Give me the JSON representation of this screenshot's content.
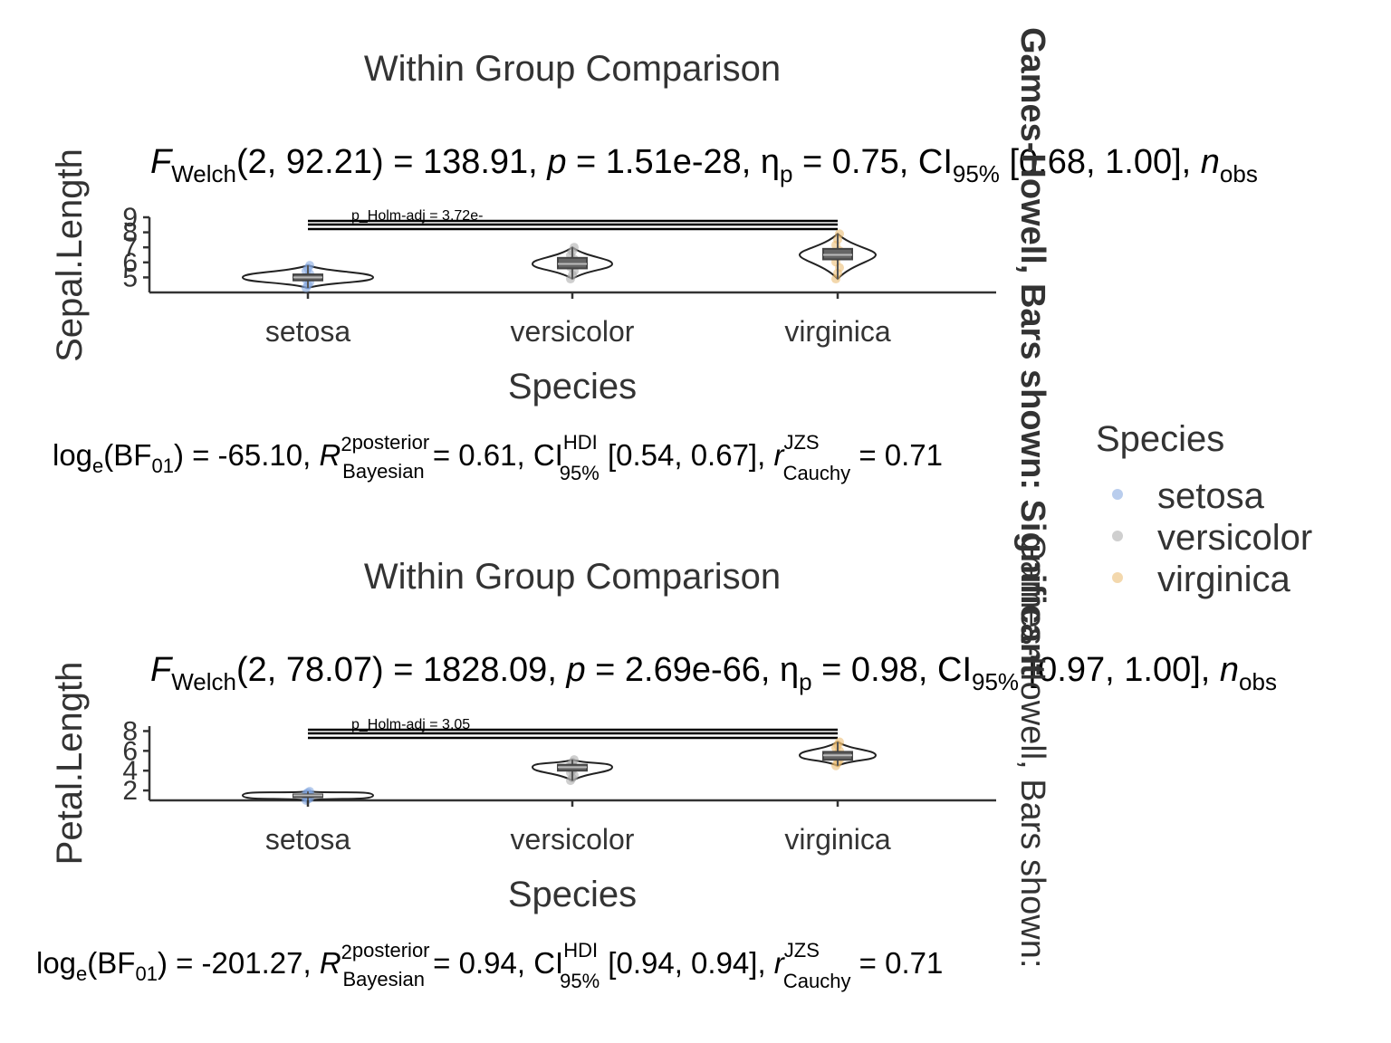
{
  "colors": {
    "setosa": "#7FA4DE",
    "versicolor": "#A8A8A8",
    "virginica": "#E9B86A",
    "axis": "#333333",
    "box": "#555555"
  },
  "side_caption": {
    "upper": "Games-Howell, Bars shown: Significant",
    "lower": "Games-Howell, Bars shown: "
  },
  "legend": {
    "title": "Species",
    "items": [
      "setosa",
      "versicolor",
      "virginica"
    ]
  },
  "chart_data": [
    {
      "type": "violin",
      "title": "Within Group Comparison",
      "stat_label": "F_Welch(2, 92.21) = 138.91, p = 1.51e-28, η²p = 0.75, CI95% [0.68, 1.00], n_obs",
      "stat_parts": {
        "f": "(2, 92.21) = 138.91, ",
        "p": " = 1.51e-28, ",
        "eta": " = 0.75, CI",
        "ci": " [0.68, 1.00], "
      },
      "ylabel": "Sepal.Length",
      "xlabel": "Species",
      "categories": [
        "setosa",
        "versicolor",
        "virginica"
      ],
      "yticks": [
        5,
        6,
        7,
        8,
        9
      ],
      "ylim": [
        4,
        9
      ],
      "groups": [
        {
          "name": "setosa",
          "min": 4.3,
          "q1": 4.8,
          "median": 5.0,
          "q3": 5.2,
          "max": 5.8
        },
        {
          "name": "versicolor",
          "min": 4.9,
          "q1": 5.6,
          "median": 5.9,
          "q3": 6.3,
          "max": 7.0
        },
        {
          "name": "virginica",
          "min": 4.9,
          "q1": 6.2,
          "median": 6.5,
          "q3": 6.9,
          "max": 7.9
        }
      ],
      "pairwise_label": "p_Holm-adj = 3.72e-",
      "bayes_label": "log_e(BF01) = -65.10, R²posterior Bayesian = 0.61, CI HDI 95% [0.54, 0.67], r JZS Cauchy = 0.71",
      "bayes_parts": {
        "bf": ") = -65.10, ",
        "r2": " = 0.61, CI",
        "ci": " [0.54, 0.67], ",
        "r": " = 0.71"
      }
    },
    {
      "type": "violin",
      "title": "Within Group Comparison",
      "stat_label": "F_Welch(2, 78.07) = 1828.09, p = 2.69e-66, η²p = 0.98, CI95% [0.97, 1.00], n_obs",
      "stat_parts": {
        "f": "(2, 78.07) = 1828.09, ",
        "p": " = 2.69e-66, ",
        "eta": " = 0.98, CI",
        "ci": " [0.97, 1.00], "
      },
      "ylabel": "Petal.Length",
      "xlabel": "Species",
      "categories": [
        "setosa",
        "versicolor",
        "virginica"
      ],
      "yticks": [
        2,
        4,
        6,
        8
      ],
      "ylim": [
        1,
        8.5
      ],
      "groups": [
        {
          "name": "setosa",
          "min": 1.0,
          "q1": 1.4,
          "median": 1.5,
          "q3": 1.6,
          "max": 1.9
        },
        {
          "name": "versicolor",
          "min": 3.0,
          "q1": 4.0,
          "median": 4.35,
          "q3": 4.6,
          "max": 5.1
        },
        {
          "name": "virginica",
          "min": 4.5,
          "q1": 5.1,
          "median": 5.55,
          "q3": 5.9,
          "max": 6.9
        }
      ],
      "pairwise_label": "p_Holm-adj = 3.05",
      "bayes_label": "log_e(BF01) = -201.27, R²posterior Bayesian = 0.94, CI HDI 95% [0.94, 0.94], r JZS Cauchy = 0.71",
      "bayes_parts": {
        "bf": ") = -201.27, ",
        "r2": " = 0.94, CI",
        "ci": " [0.94, 0.94], ",
        "r": " = 0.71"
      }
    }
  ]
}
